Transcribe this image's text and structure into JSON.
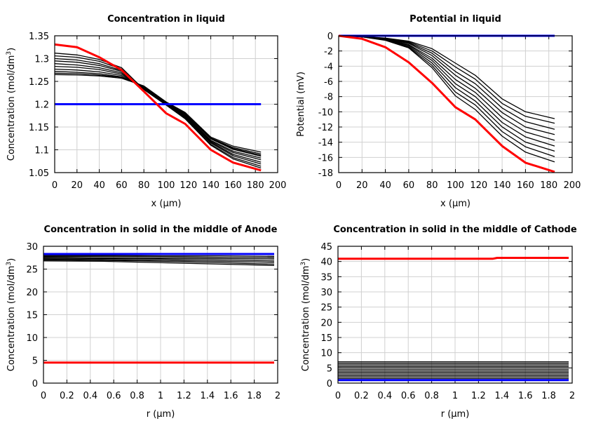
{
  "chart_data": [
    {
      "type": "line",
      "title": "Concentration in liquid",
      "xlabel": "x (µm)",
      "ylabel": [
        "Concentration (mol/dm",
        "3",
        ")"
      ],
      "xlim": [
        0,
        200
      ],
      "ylim": [
        1.05,
        1.35
      ],
      "xticks": [
        "0",
        "20",
        "40",
        "60",
        "80",
        "100",
        "120",
        "140",
        "160",
        "180",
        "200"
      ],
      "yticks": [
        "1.05",
        "1.1",
        "1.15",
        "1.2",
        "1.25",
        "1.3",
        "1.35"
      ],
      "grid": true,
      "x": [
        0,
        20,
        40,
        60,
        80,
        100,
        117,
        140,
        160,
        185
      ],
      "series": [
        {
          "color": "#000000",
          "values": [
            1.265,
            1.264,
            1.262,
            1.257,
            1.24,
            1.205,
            1.182,
            1.128,
            1.108,
            1.095
          ]
        },
        {
          "color": "#000000",
          "values": [
            1.268,
            1.267,
            1.264,
            1.259,
            1.239,
            1.204,
            1.181,
            1.126,
            1.105,
            1.091
          ]
        },
        {
          "color": "#000000",
          "values": [
            1.272,
            1.27,
            1.267,
            1.26,
            1.239,
            1.204,
            1.18,
            1.125,
            1.103,
            1.088
          ]
        },
        {
          "color": "#000000",
          "values": [
            1.277,
            1.275,
            1.271,
            1.263,
            1.238,
            1.203,
            1.179,
            1.124,
            1.101,
            1.086
          ]
        },
        {
          "color": "#000000",
          "values": [
            1.283,
            1.281,
            1.276,
            1.266,
            1.237,
            1.202,
            1.177,
            1.121,
            1.097,
            1.082
          ]
        },
        {
          "color": "#000000",
          "values": [
            1.289,
            1.286,
            1.28,
            1.269,
            1.236,
            1.202,
            1.175,
            1.119,
            1.094,
            1.078
          ]
        },
        {
          "color": "#000000",
          "values": [
            1.295,
            1.292,
            1.285,
            1.272,
            1.235,
            1.201,
            1.173,
            1.117,
            1.09,
            1.073
          ]
        },
        {
          "color": "#000000",
          "values": [
            1.3,
            1.297,
            1.289,
            1.274,
            1.234,
            1.2,
            1.172,
            1.115,
            1.087,
            1.069
          ]
        },
        {
          "color": "#000000",
          "values": [
            1.306,
            1.303,
            1.294,
            1.277,
            1.233,
            1.199,
            1.17,
            1.112,
            1.083,
            1.064
          ]
        },
        {
          "color": "#000000",
          "values": [
            1.312,
            1.308,
            1.298,
            1.28,
            1.232,
            1.198,
            1.168,
            1.11,
            1.08,
            1.06
          ]
        },
        {
          "color": "#0000ff",
          "values": [
            1.2,
            1.2,
            1.2,
            1.2,
            1.2,
            1.2,
            1.2,
            1.2,
            1.2,
            1.2
          ]
        },
        {
          "color": "#ff0000",
          "values": [
            1.331,
            1.325,
            1.303,
            1.275,
            1.228,
            1.18,
            1.157,
            1.1,
            1.072,
            1.055
          ]
        }
      ]
    },
    {
      "type": "line",
      "title": "Potential in liquid",
      "xlabel": "x (µm)",
      "ylabel": [
        "Potential (mV)",
        "",
        ""
      ],
      "xlim": [
        0,
        200
      ],
      "ylim": [
        -18,
        0
      ],
      "xticks": [
        "0",
        "20",
        "40",
        "60",
        "80",
        "100",
        "120",
        "140",
        "160",
        "180",
        "200"
      ],
      "yticks": [
        "-18",
        "-16",
        "-14",
        "-12",
        "-10",
        "-8",
        "-6",
        "-4",
        "-2",
        "0"
      ],
      "grid": true,
      "x": [
        0,
        20,
        40,
        60,
        80,
        100,
        117,
        140,
        160,
        185
      ],
      "series": [
        {
          "color": "#000000",
          "values": [
            0,
            -0.1,
            -0.3,
            -0.7,
            -1.7,
            -3.6,
            -5.2,
            -8.3,
            -10.0,
            -10.9
          ]
        },
        {
          "color": "#000000",
          "values": [
            0,
            -0.1,
            -0.33,
            -0.8,
            -2.0,
            -4.1,
            -5.7,
            -8.9,
            -10.6,
            -11.5
          ]
        },
        {
          "color": "#000000",
          "values": [
            0,
            -0.11,
            -0.38,
            -0.9,
            -2.3,
            -4.7,
            -6.3,
            -9.5,
            -11.3,
            -12.3
          ]
        },
        {
          "color": "#000000",
          "values": [
            0,
            -0.12,
            -0.42,
            -1.0,
            -2.6,
            -5.2,
            -6.9,
            -10.1,
            -12.0,
            -13.0
          ]
        },
        {
          "color": "#000000",
          "values": [
            0,
            -0.13,
            -0.45,
            -1.15,
            -2.95,
            -5.75,
            -7.45,
            -10.75,
            -12.65,
            -13.75
          ]
        },
        {
          "color": "#000000",
          "values": [
            0,
            -0.13,
            -0.49,
            -1.25,
            -3.25,
            -6.3,
            -8.0,
            -11.4,
            -13.3,
            -14.5
          ]
        },
        {
          "color": "#000000",
          "values": [
            0,
            -0.14,
            -0.53,
            -1.38,
            -3.58,
            -6.83,
            -8.58,
            -11.98,
            -13.98,
            -15.18
          ]
        },
        {
          "color": "#000000",
          "values": [
            0,
            -0.14,
            -0.56,
            -1.5,
            -3.9,
            -7.4,
            -9.1,
            -12.6,
            -14.6,
            -15.9
          ]
        },
        {
          "color": "#000000",
          "values": [
            0,
            -0.15,
            -0.6,
            -1.6,
            -4.2,
            -7.9,
            -9.7,
            -13.2,
            -15.3,
            -16.6
          ]
        },
        {
          "color": "#0000ff",
          "values": [
            0,
            0,
            0,
            0,
            0,
            0,
            0,
            0,
            0,
            0
          ]
        },
        {
          "color": "#ff0000",
          "values": [
            0,
            -0.4,
            -1.5,
            -3.5,
            -6.2,
            -9.4,
            -11.0,
            -14.5,
            -16.7,
            -17.9
          ]
        }
      ]
    },
    {
      "type": "line",
      "title": "Concentration in solid in the middle of Anode",
      "xlabel": "r (µm)",
      "ylabel": [
        "Concentration (mol/dm",
        "3",
        ")"
      ],
      "xlim": [
        0,
        2
      ],
      "ylim": [
        0,
        30
      ],
      "xticks": [
        "0",
        "0.2",
        "0.4",
        "0.6",
        "0.8",
        "1",
        "1.2",
        "1.4",
        "1.6",
        "1.8",
        "2"
      ],
      "yticks": [
        "0",
        "5",
        "10",
        "15",
        "20",
        "25",
        "30"
      ],
      "grid": true,
      "x": [
        0,
        0.5,
        1,
        1.5,
        1.97
      ],
      "series": [
        {
          "color": "#000000",
          "values": [
            28.2,
            28.2,
            28.2,
            28.2,
            28.2
          ]
        },
        {
          "color": "#000000",
          "values": [
            28.0,
            28.0,
            27.9,
            27.9,
            27.8
          ]
        },
        {
          "color": "#000000",
          "values": [
            27.8,
            27.8,
            27.7,
            27.6,
            27.5
          ]
        },
        {
          "color": "#000000",
          "values": [
            27.6,
            27.5,
            27.4,
            27.3,
            27.2
          ]
        },
        {
          "color": "#000000",
          "values": [
            27.4,
            27.3,
            27.2,
            27.0,
            26.8
          ]
        },
        {
          "color": "#000000",
          "values": [
            27.2,
            27.1,
            26.9,
            26.7,
            26.5
          ]
        },
        {
          "color": "#000000",
          "values": [
            27.0,
            26.9,
            26.7,
            26.4,
            26.1
          ]
        },
        {
          "color": "#000000",
          "values": [
            26.8,
            26.7,
            26.4,
            26.1,
            25.8
          ]
        },
        {
          "color": "#0000ff",
          "values": [
            28.3,
            28.3,
            28.3,
            28.3,
            28.3
          ]
        },
        {
          "color": "#ff0000",
          "values": [
            4.5,
            4.5,
            4.5,
            4.5,
            4.5
          ]
        }
      ]
    },
    {
      "type": "line",
      "title": "Concentration in solid in the middle of Cathode",
      "xlabel": "r (µm)",
      "ylabel": [
        "Concentration (mol/dm",
        "3",
        ")"
      ],
      "xlim": [
        0,
        2
      ],
      "ylim": [
        0,
        45
      ],
      "xticks": [
        "0",
        "0.2",
        "0.4",
        "0.6",
        "0.8",
        "1",
        "1.2",
        "1.4",
        "1.6",
        "1.8",
        "2"
      ],
      "yticks": [
        "0",
        "5",
        "10",
        "15",
        "20",
        "25",
        "30",
        "35",
        "40",
        "45"
      ],
      "grid": true,
      "x": [
        0,
        0.5,
        1,
        1.32,
        1.36,
        1.97
      ],
      "series": [
        {
          "color": "#000000",
          "values": [
            1.5,
            1.5,
            1.5,
            1.5,
            1.5,
            1.5
          ]
        },
        {
          "color": "#000000",
          "values": [
            2.0,
            2.0,
            2.0,
            2.0,
            2.0,
            2.0
          ]
        },
        {
          "color": "#000000",
          "values": [
            2.5,
            2.5,
            2.5,
            2.5,
            2.5,
            2.5
          ]
        },
        {
          "color": "#000000",
          "values": [
            3.0,
            3.0,
            3.0,
            3.0,
            3.0,
            3.0
          ]
        },
        {
          "color": "#000000",
          "values": [
            3.5,
            3.5,
            3.5,
            3.5,
            3.5,
            3.5
          ]
        },
        {
          "color": "#000000",
          "values": [
            4.0,
            4.0,
            4.0,
            4.0,
            4.0,
            4.0
          ]
        },
        {
          "color": "#000000",
          "values": [
            4.5,
            4.5,
            4.5,
            4.5,
            4.5,
            4.5
          ]
        },
        {
          "color": "#000000",
          "values": [
            5.0,
            5.0,
            5.0,
            5.0,
            5.0,
            5.0
          ]
        },
        {
          "color": "#000000",
          "values": [
            5.5,
            5.5,
            5.5,
            5.5,
            5.5,
            5.5
          ]
        },
        {
          "color": "#000000",
          "values": [
            6.0,
            6.0,
            6.0,
            6.0,
            6.0,
            6.0
          ]
        },
        {
          "color": "#000000",
          "values": [
            6.5,
            6.5,
            6.5,
            6.5,
            6.5,
            6.5
          ]
        },
        {
          "color": "#000000",
          "values": [
            7.0,
            7.0,
            7.0,
            7.0,
            7.0,
            7.0
          ]
        },
        {
          "color": "#0000ff",
          "values": [
            1.0,
            1.0,
            1.0,
            1.0,
            1.0,
            1.0
          ]
        },
        {
          "color": "#ff0000",
          "values": [
            40.9,
            40.9,
            40.9,
            40.9,
            41.2,
            41.2
          ]
        }
      ]
    }
  ]
}
